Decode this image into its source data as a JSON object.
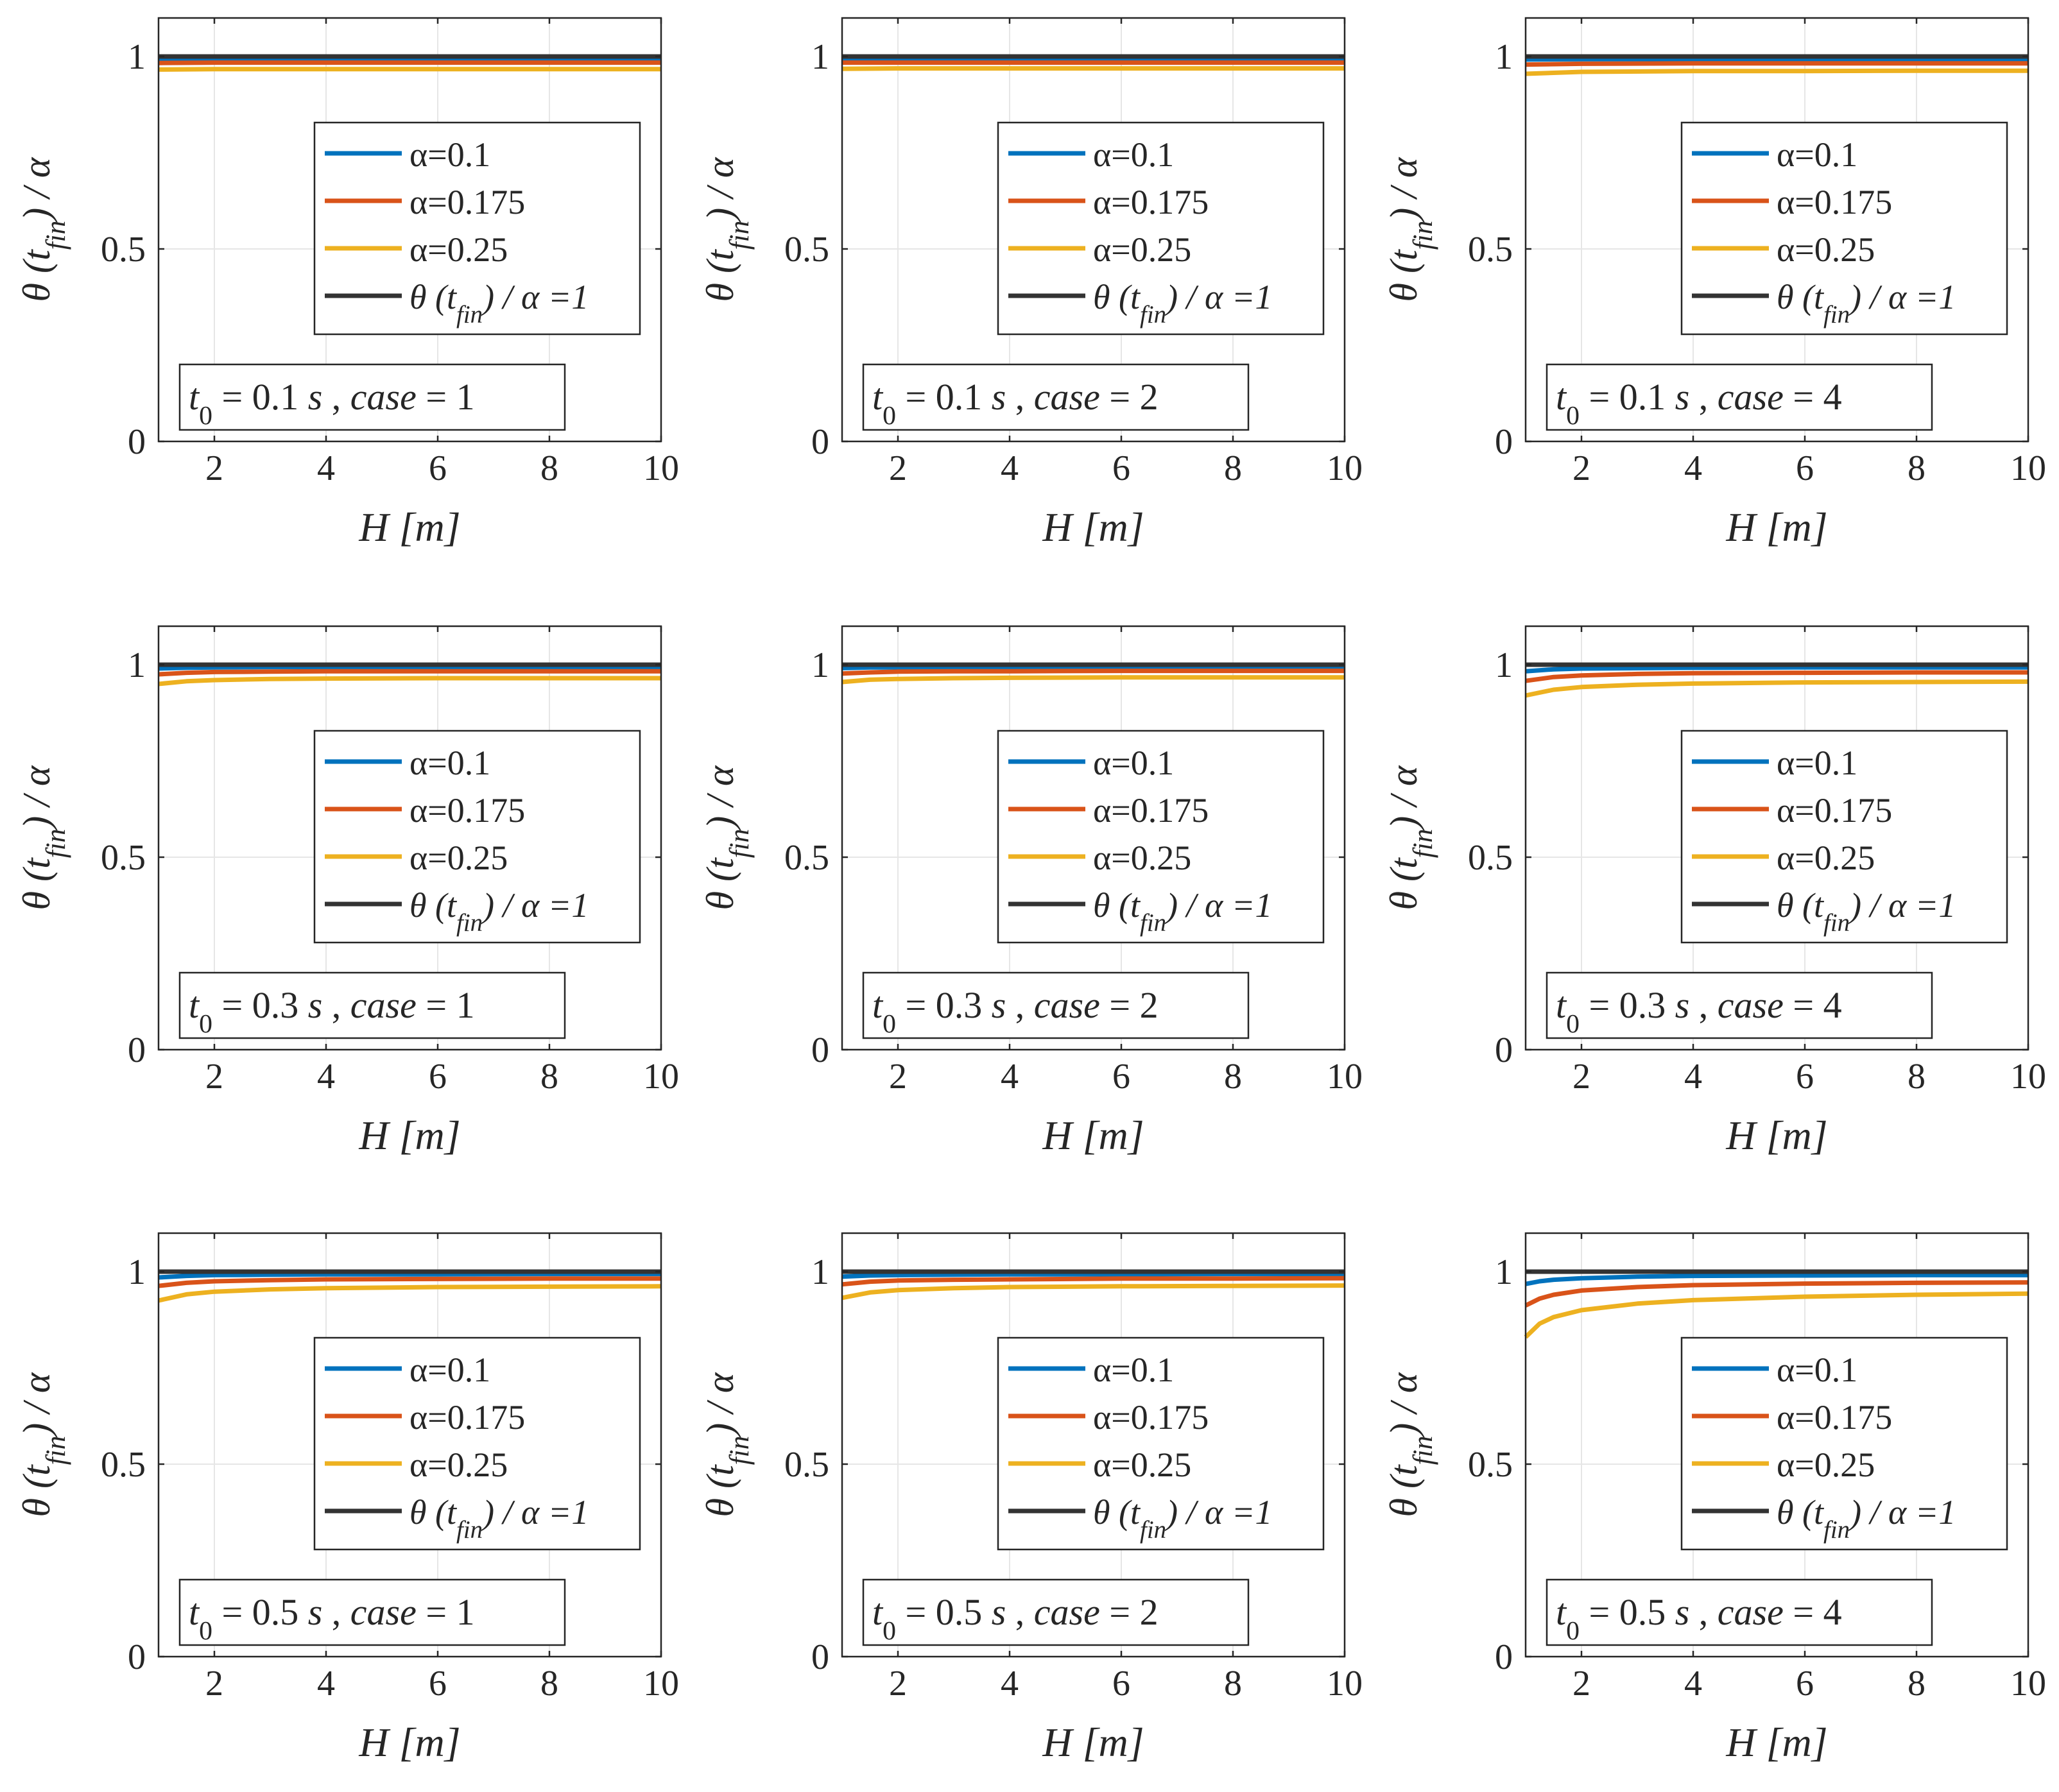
{
  "figure": {
    "grid": true,
    "legend_placement": "upper-center-right",
    "annotation_placement": "bottom-left"
  },
  "colors": {
    "alpha_0_1": "#0072BD",
    "alpha_0_175": "#D95319",
    "alpha_0_25": "#EDB120",
    "reference": "#333333",
    "axes": "#262626",
    "grid": "#e6e6e6"
  },
  "chart_data": [
    {
      "type": "line",
      "panel_row": 1,
      "panel_col": 1,
      "annotation": {
        "t0_value": "0.1",
        "case_value": "1"
      },
      "xlabel": "H [m]",
      "ylabel": "θ (t_fin) / α",
      "xlim": [
        1,
        10
      ],
      "ylim": [
        0,
        1.1
      ],
      "xticks": [
        "2",
        "4",
        "6",
        "8",
        "10"
      ],
      "yticks": [
        "0",
        "0.5",
        "1"
      ],
      "x": [
        1,
        2,
        4,
        6,
        8,
        10
      ],
      "series": [
        {
          "name": "α=0.1",
          "color": "#0072BD",
          "values": [
            0.993,
            0.994,
            0.994,
            0.994,
            0.994,
            0.994
          ]
        },
        {
          "name": "α=0.175",
          "color": "#D95319",
          "values": [
            0.983,
            0.984,
            0.984,
            0.984,
            0.984,
            0.984
          ]
        },
        {
          "name": "α=0.25",
          "color": "#EDB120",
          "values": [
            0.966,
            0.967,
            0.967,
            0.967,
            0.967,
            0.967
          ]
        },
        {
          "name": "θ (t_fin) / α =1",
          "color": "#333333",
          "values": [
            1,
            1,
            1,
            1,
            1,
            1
          ]
        }
      ]
    },
    {
      "type": "line",
      "panel_row": 1,
      "panel_col": 2,
      "annotation": {
        "t0_value": "0.1",
        "case_value": "2"
      },
      "xlabel": "H [m]",
      "ylabel": "θ (t_fin) / α",
      "xlim": [
        1,
        10
      ],
      "ylim": [
        0,
        1.1
      ],
      "xticks": [
        "2",
        "4",
        "6",
        "8",
        "10"
      ],
      "yticks": [
        "0",
        "0.5",
        "1"
      ],
      "x": [
        1,
        2,
        4,
        6,
        8,
        10
      ],
      "series": [
        {
          "name": "α=0.1",
          "color": "#0072BD",
          "values": [
            0.994,
            0.994,
            0.994,
            0.994,
            0.994,
            0.994
          ]
        },
        {
          "name": "α=0.175",
          "color": "#D95319",
          "values": [
            0.984,
            0.984,
            0.984,
            0.984,
            0.984,
            0.984
          ]
        },
        {
          "name": "α=0.25",
          "color": "#EDB120",
          "values": [
            0.968,
            0.969,
            0.969,
            0.969,
            0.969,
            0.969
          ]
        },
        {
          "name": "θ (t_fin) / α =1",
          "color": "#333333",
          "values": [
            1,
            1,
            1,
            1,
            1,
            1
          ]
        }
      ]
    },
    {
      "type": "line",
      "panel_row": 1,
      "panel_col": 3,
      "annotation": {
        "t0_value": "0.1",
        "case_value": "4"
      },
      "xlabel": "H [m]",
      "ylabel": "θ (t_fin) / α",
      "xlim": [
        1,
        10
      ],
      "ylim": [
        0,
        1.1
      ],
      "xticks": [
        "2",
        "4",
        "6",
        "8",
        "10"
      ],
      "yticks": [
        "0",
        "0.5",
        "1"
      ],
      "x": [
        1,
        2,
        4,
        6,
        8,
        10
      ],
      "series": [
        {
          "name": "α=0.1",
          "color": "#0072BD",
          "values": [
            0.992,
            0.993,
            0.993,
            0.993,
            0.993,
            0.993
          ]
        },
        {
          "name": "α=0.175",
          "color": "#D95319",
          "values": [
            0.979,
            0.981,
            0.982,
            0.982,
            0.982,
            0.982
          ]
        },
        {
          "name": "α=0.25",
          "color": "#EDB120",
          "values": [
            0.955,
            0.96,
            0.962,
            0.962,
            0.963,
            0.963
          ]
        },
        {
          "name": "θ (t_fin) / α =1",
          "color": "#333333",
          "values": [
            1,
            1,
            1,
            1,
            1,
            1
          ]
        }
      ]
    },
    {
      "type": "line",
      "panel_row": 2,
      "panel_col": 1,
      "annotation": {
        "t0_value": "0.3",
        "case_value": "1"
      },
      "xlabel": "H [m]",
      "ylabel": "θ (t_fin) / α",
      "xlim": [
        1,
        10
      ],
      "ylim": [
        0,
        1.1
      ],
      "xticks": [
        "2",
        "4",
        "6",
        "8",
        "10"
      ],
      "yticks": [
        "0",
        "0.5",
        "1"
      ],
      "x": [
        1,
        1.5,
        2,
        3,
        4,
        6,
        8,
        10
      ],
      "series": [
        {
          "name": "α=0.1",
          "color": "#0072BD",
          "values": [
            0.99,
            0.992,
            0.993,
            0.994,
            0.994,
            0.994,
            0.994,
            0.994
          ]
        },
        {
          "name": "α=0.175",
          "color": "#D95319",
          "values": [
            0.975,
            0.979,
            0.981,
            0.982,
            0.983,
            0.983,
            0.983,
            0.983
          ]
        },
        {
          "name": "α=0.25",
          "color": "#EDB120",
          "values": [
            0.95,
            0.957,
            0.96,
            0.963,
            0.964,
            0.965,
            0.965,
            0.965
          ]
        },
        {
          "name": "θ (t_fin) / α =1",
          "color": "#333333",
          "values": [
            1,
            1,
            1,
            1,
            1,
            1,
            1,
            1
          ]
        }
      ]
    },
    {
      "type": "line",
      "panel_row": 2,
      "panel_col": 2,
      "annotation": {
        "t0_value": "0.3",
        "case_value": "2"
      },
      "xlabel": "H [m]",
      "ylabel": "θ (t_fin) / α",
      "xlim": [
        1,
        10
      ],
      "ylim": [
        0,
        1.1
      ],
      "xticks": [
        "2",
        "4",
        "6",
        "8",
        "10"
      ],
      "yticks": [
        "0",
        "0.5",
        "1"
      ],
      "x": [
        1,
        1.5,
        2,
        3,
        4,
        6,
        8,
        10
      ],
      "series": [
        {
          "name": "α=0.1",
          "color": "#0072BD",
          "values": [
            0.991,
            0.993,
            0.993,
            0.994,
            0.994,
            0.994,
            0.994,
            0.994
          ]
        },
        {
          "name": "α=0.175",
          "color": "#D95319",
          "values": [
            0.977,
            0.98,
            0.982,
            0.983,
            0.983,
            0.984,
            0.984,
            0.984
          ]
        },
        {
          "name": "α=0.25",
          "color": "#EDB120",
          "values": [
            0.955,
            0.961,
            0.963,
            0.965,
            0.966,
            0.967,
            0.967,
            0.967
          ]
        },
        {
          "name": "θ (t_fin) / α =1",
          "color": "#333333",
          "values": [
            1,
            1,
            1,
            1,
            1,
            1,
            1,
            1
          ]
        }
      ]
    },
    {
      "type": "line",
      "panel_row": 2,
      "panel_col": 3,
      "annotation": {
        "t0_value": "0.3",
        "case_value": "4"
      },
      "xlabel": "H [m]",
      "ylabel": "θ (t_fin) / α",
      "xlim": [
        1,
        10
      ],
      "ylim": [
        0,
        1.1
      ],
      "xticks": [
        "2",
        "4",
        "6",
        "8",
        "10"
      ],
      "yticks": [
        "0",
        "0.5",
        "1"
      ],
      "x": [
        1,
        1.5,
        2,
        3,
        4,
        6,
        8,
        10
      ],
      "series": [
        {
          "name": "α=0.1",
          "color": "#0072BD",
          "values": [
            0.983,
            0.988,
            0.99,
            0.991,
            0.992,
            0.993,
            0.993,
            0.993
          ]
        },
        {
          "name": "α=0.175",
          "color": "#D95319",
          "values": [
            0.958,
            0.968,
            0.972,
            0.976,
            0.978,
            0.979,
            0.98,
            0.98
          ]
        },
        {
          "name": "α=0.25",
          "color": "#EDB120",
          "values": [
            0.92,
            0.935,
            0.942,
            0.948,
            0.951,
            0.954,
            0.955,
            0.956
          ]
        },
        {
          "name": "θ (t_fin) / α =1",
          "color": "#333333",
          "values": [
            1,
            1,
            1,
            1,
            1,
            1,
            1,
            1
          ]
        }
      ]
    },
    {
      "type": "line",
      "panel_row": 3,
      "panel_col": 1,
      "annotation": {
        "t0_value": "0.5",
        "case_value": "1"
      },
      "xlabel": "H [m]",
      "ylabel": "θ (t_fin) / α",
      "xlim": [
        1,
        10
      ],
      "ylim": [
        0,
        1.1
      ],
      "xticks": [
        "2",
        "4",
        "6",
        "8",
        "10"
      ],
      "yticks": [
        "0",
        "0.5",
        "1"
      ],
      "x": [
        1,
        1.5,
        2,
        3,
        4,
        6,
        8,
        10
      ],
      "series": [
        {
          "name": "α=0.1",
          "color": "#0072BD",
          "values": [
            0.985,
            0.989,
            0.991,
            0.992,
            0.993,
            0.993,
            0.994,
            0.994
          ]
        },
        {
          "name": "α=0.175",
          "color": "#D95319",
          "values": [
            0.963,
            0.971,
            0.975,
            0.978,
            0.98,
            0.981,
            0.982,
            0.982
          ]
        },
        {
          "name": "α=0.25",
          "color": "#EDB120",
          "values": [
            0.925,
            0.941,
            0.948,
            0.954,
            0.957,
            0.96,
            0.961,
            0.962
          ]
        },
        {
          "name": "θ (t_fin) / α =1",
          "color": "#333333",
          "values": [
            1,
            1,
            1,
            1,
            1,
            1,
            1,
            1
          ]
        }
      ]
    },
    {
      "type": "line",
      "panel_row": 3,
      "panel_col": 2,
      "annotation": {
        "t0_value": "0.5",
        "case_value": "2"
      },
      "xlabel": "H [m]",
      "ylabel": "θ (t_fin) / α",
      "xlim": [
        1,
        10
      ],
      "ylim": [
        0,
        1.1
      ],
      "xticks": [
        "2",
        "4",
        "6",
        "8",
        "10"
      ],
      "yticks": [
        "0",
        "0.5",
        "1"
      ],
      "x": [
        1,
        1.5,
        2,
        3,
        4,
        6,
        8,
        10
      ],
      "series": [
        {
          "name": "α=0.1",
          "color": "#0072BD",
          "values": [
            0.987,
            0.99,
            0.991,
            0.992,
            0.993,
            0.993,
            0.994,
            0.994
          ]
        },
        {
          "name": "α=0.175",
          "color": "#D95319",
          "values": [
            0.967,
            0.974,
            0.977,
            0.979,
            0.98,
            0.982,
            0.982,
            0.983
          ]
        },
        {
          "name": "α=0.25",
          "color": "#EDB120",
          "values": [
            0.932,
            0.946,
            0.952,
            0.957,
            0.96,
            0.962,
            0.963,
            0.964
          ]
        },
        {
          "name": "θ (t_fin) / α =1",
          "color": "#333333",
          "values": [
            1,
            1,
            1,
            1,
            1,
            1,
            1,
            1
          ]
        }
      ]
    },
    {
      "type": "line",
      "panel_row": 3,
      "panel_col": 3,
      "annotation": {
        "t0_value": "0.5",
        "case_value": "4"
      },
      "xlabel": "H [m]",
      "ylabel": "θ (t_fin) / α",
      "xlim": [
        1,
        10
      ],
      "ylim": [
        0,
        1.1
      ],
      "xticks": [
        "2",
        "4",
        "6",
        "8",
        "10"
      ],
      "yticks": [
        "0",
        "0.5",
        "1"
      ],
      "x": [
        1,
        1.25,
        1.5,
        2,
        3,
        4,
        6,
        8,
        10
      ],
      "series": [
        {
          "name": "α=0.1",
          "color": "#0072BD",
          "values": [
            0.968,
            0.975,
            0.979,
            0.983,
            0.987,
            0.989,
            0.99,
            0.991,
            0.991
          ]
        },
        {
          "name": "α=0.175",
          "color": "#D95319",
          "values": [
            0.912,
            0.93,
            0.94,
            0.951,
            0.96,
            0.965,
            0.969,
            0.971,
            0.972
          ]
        },
        {
          "name": "α=0.25",
          "color": "#EDB120",
          "values": [
            0.83,
            0.865,
            0.882,
            0.9,
            0.917,
            0.926,
            0.935,
            0.94,
            0.943
          ]
        },
        {
          "name": "θ (t_fin) / α =1",
          "color": "#333333",
          "values": [
            1,
            1,
            1,
            1,
            1,
            1,
            1,
            1,
            1
          ]
        }
      ]
    }
  ]
}
